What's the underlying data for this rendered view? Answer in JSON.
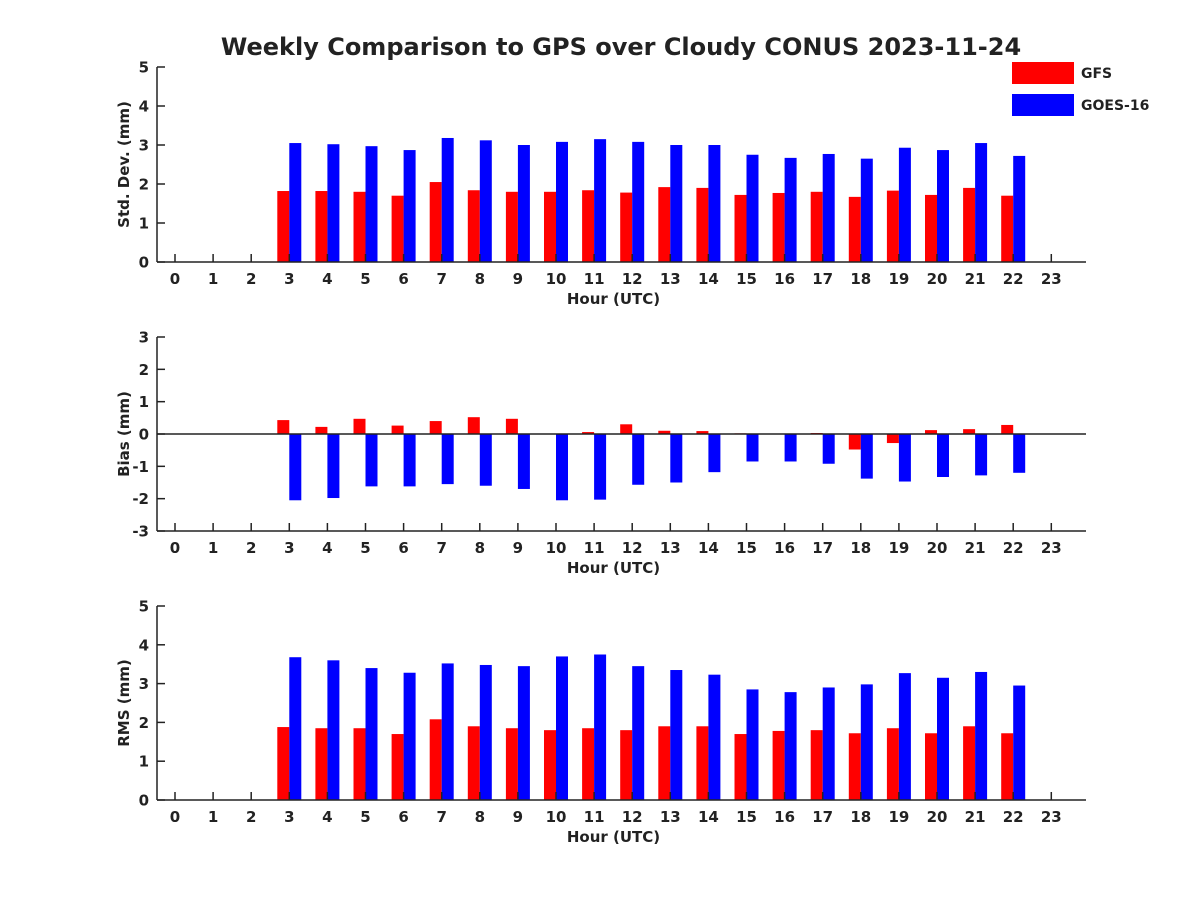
{
  "chart_data": {
    "type": "bar",
    "title": "Weekly Comparison to GPS over Cloudy CONUS 2023-11-24",
    "legend": {
      "placement": "top-right",
      "entries": [
        {
          "name": "GFS",
          "color": "#ff0000"
        },
        {
          "name": "GOES-16",
          "color": "#0000ff"
        }
      ]
    },
    "categories": [
      "0",
      "1",
      "2",
      "3",
      "4",
      "5",
      "6",
      "7",
      "8",
      "9",
      "10",
      "11",
      "12",
      "13",
      "14",
      "15",
      "16",
      "17",
      "18",
      "19",
      "20",
      "21",
      "22",
      "23"
    ],
    "panels": [
      {
        "ylabel": "Std. Dev. (mm)",
        "xlabel": "Hour (UTC)",
        "ylim": [
          0,
          5
        ],
        "yticks": [
          "0",
          "1",
          "2",
          "3",
          "4",
          "5"
        ],
        "series": [
          {
            "name": "GFS",
            "color": "#ff0000",
            "values": [
              null,
              null,
              null,
              1.82,
              1.82,
              1.8,
              1.7,
              2.05,
              1.84,
              1.8,
              1.8,
              1.84,
              1.78,
              1.92,
              1.9,
              1.72,
              1.77,
              1.8,
              1.67,
              1.83,
              1.72,
              1.9,
              1.7,
              null
            ]
          },
          {
            "name": "GOES-16",
            "color": "#0000ff",
            "values": [
              null,
              null,
              null,
              3.05,
              3.02,
              2.97,
              2.87,
              3.18,
              3.12,
              3.0,
              3.08,
              3.15,
              3.08,
              3.0,
              3.0,
              2.75,
              2.67,
              2.77,
              2.65,
              2.93,
              2.87,
              3.05,
              2.72,
              null
            ]
          }
        ]
      },
      {
        "ylabel": "Bias (mm)",
        "xlabel": "Hour (UTC)",
        "ylim": [
          -3,
          3
        ],
        "yticks": [
          "-3",
          "-2",
          "-1",
          "0",
          "1",
          "2",
          "3"
        ],
        "series": [
          {
            "name": "GFS",
            "color": "#ff0000",
            "values": [
              null,
              null,
              null,
              0.43,
              0.22,
              0.47,
              0.26,
              0.4,
              0.52,
              0.47,
              0.0,
              0.06,
              0.3,
              0.1,
              0.09,
              0.02,
              0.0,
              0.03,
              -0.48,
              -0.28,
              0.12,
              0.15,
              0.28,
              null
            ]
          },
          {
            "name": "GOES-16",
            "color": "#0000ff",
            "values": [
              null,
              null,
              null,
              -2.05,
              -1.98,
              -1.62,
              -1.62,
              -1.55,
              -1.6,
              -1.7,
              -2.05,
              -2.03,
              -1.57,
              -1.5,
              -1.18,
              -0.85,
              -0.85,
              -0.92,
              -1.38,
              -1.47,
              -1.33,
              -1.28,
              -1.2,
              null
            ]
          }
        ]
      },
      {
        "ylabel": "RMS (mm)",
        "xlabel": "Hour (UTC)",
        "ylim": [
          0,
          5
        ],
        "yticks": [
          "0",
          "1",
          "2",
          "3",
          "4",
          "5"
        ],
        "series": [
          {
            "name": "GFS",
            "color": "#ff0000",
            "values": [
              null,
              null,
              null,
              1.88,
              1.85,
              1.85,
              1.7,
              2.08,
              1.9,
              1.85,
              1.8,
              1.85,
              1.8,
              1.9,
              1.9,
              1.7,
              1.78,
              1.8,
              1.72,
              1.85,
              1.72,
              1.9,
              1.72,
              null
            ]
          },
          {
            "name": "GOES-16",
            "color": "#0000ff",
            "values": [
              null,
              null,
              null,
              3.68,
              3.6,
              3.4,
              3.28,
              3.52,
              3.48,
              3.45,
              3.7,
              3.75,
              3.45,
              3.35,
              3.23,
              2.85,
              2.78,
              2.9,
              2.98,
              3.27,
              3.15,
              3.3,
              2.95,
              null
            ]
          }
        ]
      }
    ]
  }
}
